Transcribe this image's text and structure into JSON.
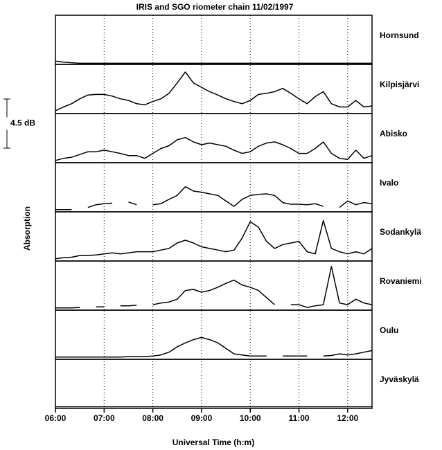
{
  "chart_data": {
    "type": "line",
    "title": "IRIS and SGO riometer chain 11/02/1997",
    "xlabel": "Universal Time (h:m)",
    "ylabel": "Absorption",
    "scale_bar": {
      "value": 4.5,
      "label": "4.5 dB"
    },
    "xlim": [
      6,
      12.5
    ],
    "xticks": [
      {
        "value": 6,
        "label": "06:00"
      },
      {
        "value": 7,
        "label": "07:00"
      },
      {
        "value": 8,
        "label": "08:00"
      },
      {
        "value": 9,
        "label": "09:00"
      },
      {
        "value": 10,
        "label": "10:00"
      },
      {
        "value": 11,
        "label": "11:00"
      },
      {
        "value": 12,
        "label": "12:00"
      }
    ],
    "ylim": [
      0,
      4.5
    ],
    "grid": true,
    "x": [
      6,
      6.1667,
      6.3333,
      6.5,
      6.6667,
      6.8333,
      7,
      7.1667,
      7.3333,
      7.5,
      7.6667,
      7.8333,
      8,
      8.1667,
      8.3333,
      8.5,
      8.6667,
      8.8333,
      9,
      9.1667,
      9.3333,
      9.5,
      9.6667,
      9.8333,
      10,
      10.1667,
      10.3333,
      10.5,
      10.6667,
      10.8333,
      11,
      11.1667,
      11.3333,
      11.5,
      11.6667,
      11.8333,
      12,
      12.1667,
      12.3333,
      12.5
    ],
    "series": [
      {
        "name": "Hornsund",
        "color": "#000000",
        "values": [
          0.3,
          0.2,
          0.15,
          0.1,
          0.1,
          0.1,
          0.1,
          0.1,
          0.1,
          0.1,
          0.1,
          0.1,
          0.1,
          0.1,
          0.1,
          0.1,
          0.1,
          0.1,
          0.1,
          0.1,
          0.1,
          0.1,
          0.1,
          0.1,
          0.1,
          0.1,
          0.1,
          0.1,
          0.1,
          0.1,
          0.1,
          0.1,
          0.1,
          0.1,
          0.1,
          0.1,
          0.1,
          0.1,
          0.1,
          0.1
        ]
      },
      {
        "name": "Kilpisjärvi",
        "color": "#000000",
        "values": [
          0.25,
          0.6,
          0.9,
          1.35,
          1.7,
          1.75,
          1.75,
          1.6,
          1.35,
          1.2,
          0.9,
          0.8,
          1.1,
          1.35,
          1.85,
          2.8,
          3.8,
          2.8,
          2.4,
          2.0,
          1.7,
          1.35,
          1.1,
          0.9,
          1.2,
          1.75,
          1.85,
          2.0,
          2.3,
          1.85,
          1.35,
          0.9,
          1.55,
          2.0,
          0.9,
          0.6,
          0.6,
          1.2,
          0.6,
          0.7
        ]
      },
      {
        "name": "Abisko",
        "color": "#000000",
        "values": [
          0.2,
          0.4,
          0.5,
          0.75,
          1.0,
          1.0,
          1.15,
          1.0,
          0.85,
          0.65,
          0.65,
          0.4,
          0.85,
          1.3,
          1.55,
          2.1,
          2.3,
          1.9,
          1.65,
          1.8,
          1.65,
          1.5,
          1.15,
          0.85,
          1.0,
          1.5,
          1.8,
          1.9,
          1.65,
          1.3,
          0.85,
          0.85,
          1.3,
          1.9,
          0.85,
          0.4,
          0.3,
          1.15,
          0.4,
          0.65
        ]
      },
      {
        "name": "Ivalo",
        "color": "#000000",
        "values": [
          0.2,
          0.2,
          0.2,
          null,
          0.4,
          0.65,
          0.75,
          0.8,
          null,
          0.9,
          0.65,
          null,
          0.65,
          0.75,
          1.15,
          1.5,
          2.3,
          1.9,
          1.8,
          1.65,
          1.5,
          1.0,
          0.5,
          1.15,
          1.5,
          1.6,
          1.65,
          1.5,
          0.85,
          0.7,
          0.7,
          0.65,
          0.75,
          0.5,
          null,
          0.4,
          1.0,
          0.65,
          0.85,
          0.75
        ]
      },
      {
        "name": "Sodankylä",
        "color": "#000000",
        "values": [
          0.2,
          0.3,
          0.35,
          0.5,
          0.5,
          0.55,
          0.65,
          0.75,
          0.65,
          0.75,
          0.85,
          0.85,
          0.85,
          1.0,
          1.15,
          1.65,
          1.9,
          1.65,
          1.3,
          1.15,
          1.0,
          0.85,
          1.0,
          2.1,
          3.6,
          3.1,
          1.8,
          1.15,
          1.5,
          1.65,
          1.8,
          0.85,
          0.65,
          3.7,
          1.15,
          0.85,
          0.65,
          0.85,
          0.65,
          1.15
        ]
      },
      {
        "name": "Rovaniemi",
        "color": "#000000",
        "values": [
          0.2,
          0.2,
          0.2,
          0.25,
          null,
          0.3,
          0.3,
          null,
          0.4,
          0.4,
          0.45,
          null,
          0.5,
          0.65,
          0.75,
          1.0,
          1.8,
          1.9,
          1.65,
          1.8,
          2.1,
          2.45,
          2.75,
          2.3,
          2.1,
          1.8,
          1.15,
          0.5,
          null,
          0.5,
          0.5,
          0.25,
          0.4,
          0.5,
          4.0,
          0.65,
          0.5,
          1.0,
          0.65,
          0.5
        ]
      },
      {
        "name": "Oulu",
        "color": "#000000",
        "values": [
          0.2,
          0.2,
          0.2,
          0.2,
          0.2,
          0.2,
          0.2,
          0.2,
          0.2,
          0.25,
          0.25,
          0.25,
          0.3,
          0.4,
          0.65,
          1.15,
          1.5,
          1.8,
          2.0,
          1.8,
          1.5,
          1.0,
          0.5,
          0.4,
          0.3,
          0.3,
          0.3,
          null,
          0.3,
          0.3,
          0.3,
          0.3,
          null,
          0.3,
          0.35,
          0.5,
          0.4,
          0.5,
          0.65,
          0.8
        ]
      },
      {
        "name": "Jyväskylä",
        "color": "#000000",
        "values": [
          0.15,
          0.15,
          0.15,
          0.15,
          0.15,
          0.15,
          0.15,
          0.15,
          0.15,
          0.15,
          0.15,
          0.15,
          0.15,
          0.15,
          0.15,
          0.15,
          0.15,
          0.15,
          0.15,
          0.15,
          0.15,
          0.15,
          0.15,
          0.15,
          0.15,
          0.15,
          0.15,
          0.15,
          0.15,
          0.15,
          0.15,
          0.15,
          0.15,
          0.15,
          0.15,
          0.15,
          0.15,
          0.15,
          0.15,
          0.15
        ]
      }
    ]
  }
}
